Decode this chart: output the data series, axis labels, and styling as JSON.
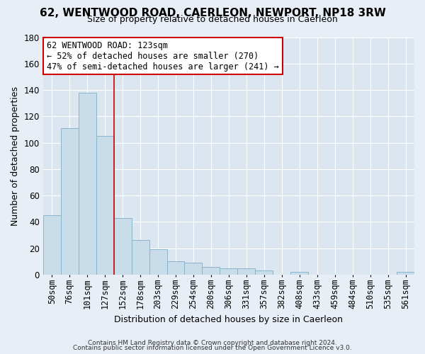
{
  "title": "62, WENTWOOD ROAD, CAERLEON, NEWPORT, NP18 3RW",
  "subtitle": "Size of property relative to detached houses in Caerleon",
  "xlabel": "Distribution of detached houses by size in Caerleon",
  "ylabel": "Number of detached properties",
  "bin_labels": [
    "50sqm",
    "76sqm",
    "101sqm",
    "127sqm",
    "152sqm",
    "178sqm",
    "203sqm",
    "229sqm",
    "254sqm",
    "280sqm",
    "306sqm",
    "331sqm",
    "357sqm",
    "382sqm",
    "408sqm",
    "433sqm",
    "459sqm",
    "484sqm",
    "510sqm",
    "535sqm",
    "561sqm"
  ],
  "bar_heights": [
    45,
    111,
    138,
    105,
    43,
    26,
    19,
    10,
    9,
    6,
    5,
    5,
    3,
    0,
    2,
    0,
    0,
    0,
    0,
    0,
    2
  ],
  "bar_color": "#c8dcea",
  "bar_edge_color": "#8ab4cc",
  "vline_color": "#cc0000",
  "annotation_line1": "62 WENTWOOD ROAD: 123sqm",
  "annotation_line2": "← 52% of detached houses are smaller (270)",
  "annotation_line3": "47% of semi-detached houses are larger (241) →",
  "annotation_box_facecolor": "#ffffff",
  "annotation_box_edgecolor": "#cc0000",
  "ylim": [
    0,
    180
  ],
  "yticks": [
    0,
    20,
    40,
    60,
    80,
    100,
    120,
    140,
    160,
    180
  ],
  "footer_line1": "Contains HM Land Registry data © Crown copyright and database right 2024.",
  "footer_line2": "Contains public sector information licensed under the Open Government Licence v3.0.",
  "bg_color": "#e8eef5",
  "plot_bg_color": "#dce6f0",
  "grid_color": "#ffffff",
  "title_fontsize": 11,
  "subtitle_fontsize": 9,
  "ylabel_fontsize": 9,
  "xlabel_fontsize": 9,
  "tick_fontsize": 8.5,
  "annot_fontsize": 8.5,
  "footer_fontsize": 6.5
}
